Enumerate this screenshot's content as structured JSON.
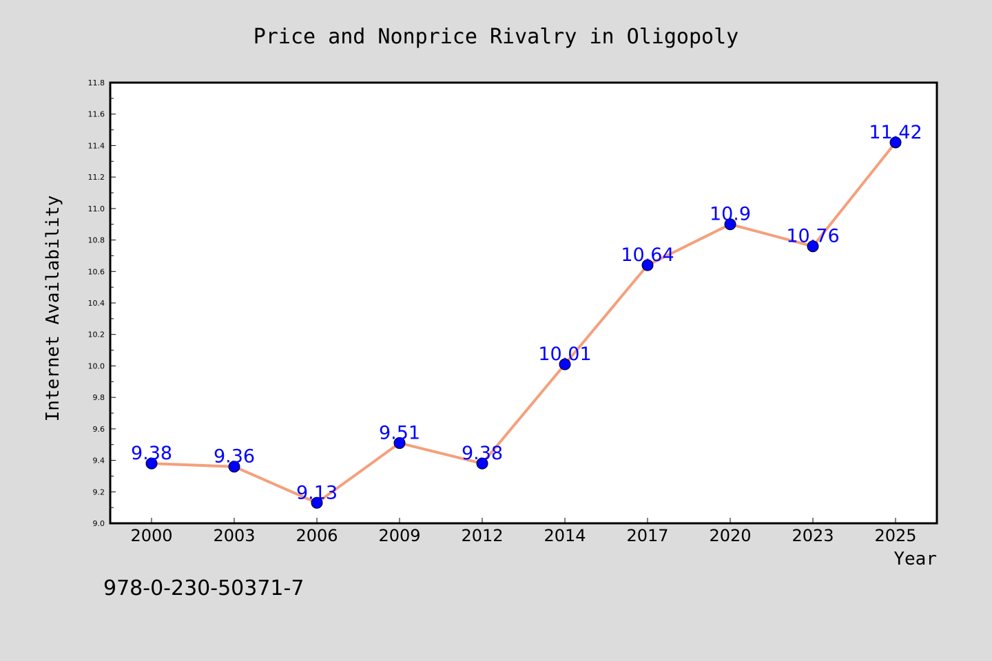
{
  "chart_data": {
    "type": "line",
    "title": "Price and Nonprice Rivalry in Oligopoly",
    "xlabel": "Year",
    "ylabel": "Internet Availability",
    "categories": [
      "2000",
      "2003",
      "2006",
      "2009",
      "2012",
      "2014",
      "2017",
      "2020",
      "2023",
      "2025"
    ],
    "series": [
      {
        "values": [
          9.38,
          9.36,
          9.13,
          9.51,
          9.38,
          10.01,
          10.64,
          10.9,
          10.76,
          11.42
        ],
        "data_labels": [
          "9.38",
          "9.36",
          "9.13",
          "9.51",
          "9.38",
          "10.01",
          "10.64",
          "10.9",
          "10.76",
          "11.42"
        ],
        "line_color": "#f4a07c",
        "marker_color": "#0000ff",
        "label_color": "#0000ff"
      }
    ],
    "ylim": [
      9.0,
      11.8
    ],
    "yticks": [
      "9.0",
      "9.2",
      "9.4",
      "9.6",
      "9.8",
      "10.0",
      "10.2",
      "10.4",
      "10.6",
      "10.8",
      "11.0",
      "11.2",
      "11.4",
      "11.6",
      "11.8"
    ],
    "grid": false,
    "legend": "none"
  },
  "footnote": "978-0-230-50371-7",
  "colors": {
    "background": "#dcdcdc",
    "plot_background": "#ffffff"
  }
}
